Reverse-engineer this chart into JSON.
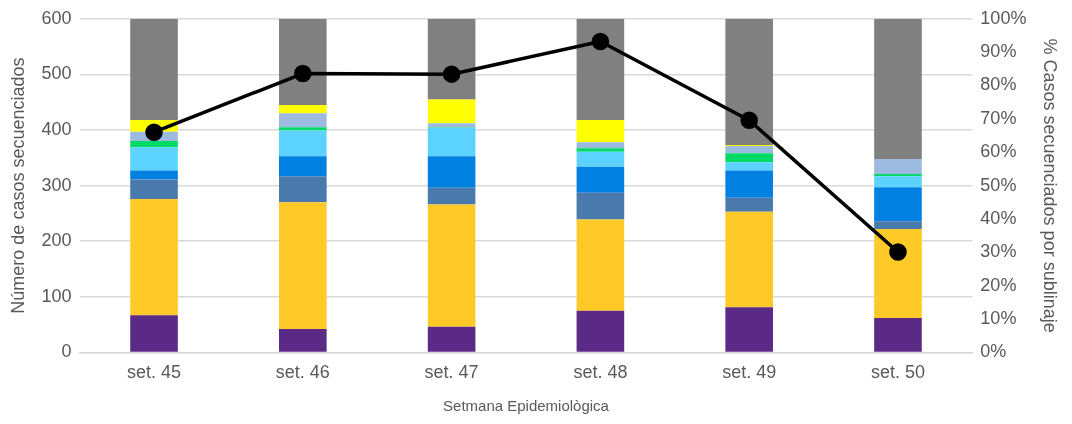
{
  "chart_data": {
    "type": "bar",
    "stacked": true,
    "xlabel": "Setmana Epidemiològica",
    "ylabel": "Número de casos secuenciados",
    "y2label": "% Casos secuenciados por sublinaje",
    "categories": [
      "set. 45",
      "set. 46",
      "set. 47",
      "set. 48",
      "set. 49",
      "set. 50"
    ],
    "series": [
      {
        "color": "#5b2a86",
        "values": [
          67,
          42,
          46,
          75,
          81,
          62
        ]
      },
      {
        "color": "#ffca28",
        "values": [
          209,
          228,
          220,
          164,
          172,
          160
        ]
      },
      {
        "color": "#4a7aab",
        "values": [
          35,
          47,
          30,
          48,
          25,
          14
        ]
      },
      {
        "color": "#0080e0",
        "values": [
          16,
          36,
          57,
          47,
          49,
          61
        ]
      },
      {
        "color": "#5cd3ff",
        "values": [
          42,
          46,
          51,
          27,
          15,
          20
        ]
      },
      {
        "color": "#00d966",
        "values": [
          11,
          6,
          1,
          6,
          16,
          4
        ]
      },
      {
        "color": "#9dbbe0",
        "values": [
          17,
          25,
          7,
          11,
          13,
          27
        ]
      },
      {
        "color": "#ffff00",
        "values": [
          21,
          15,
          43,
          40,
          2,
          0
        ]
      },
      {
        "color": "#808080",
        "values": [
          182,
          155,
          145,
          182,
          227,
          252
        ]
      },
      {
        "type": "line",
        "axis": "y2",
        "color": "#000000",
        "marker": "circle",
        "line_style": "solid",
        "values": [
          66,
          83.6,
          83.4,
          93.2,
          69.6,
          30.1
        ]
      }
    ],
    "ylim": [
      0,
      600
    ],
    "yticks": [
      0,
      100,
      200,
      300,
      400,
      500,
      600
    ],
    "y2lim": [
      0,
      100
    ],
    "y2ticks": [
      {
        "value": 0,
        "label": "0%"
      },
      {
        "value": 10,
        "label": "10%"
      },
      {
        "value": 20,
        "label": "20%"
      },
      {
        "value": 30,
        "label": "30%"
      },
      {
        "value": 40,
        "label": "40%"
      },
      {
        "value": 50,
        "label": "50%"
      },
      {
        "value": 60,
        "label": "60%"
      },
      {
        "value": 70,
        "label": "70%"
      },
      {
        "value": 80,
        "label": "80%"
      },
      {
        "value": 90,
        "label": "90%"
      },
      {
        "value": 100,
        "label": "100%"
      }
    ],
    "grid": "y",
    "legend": false
  }
}
